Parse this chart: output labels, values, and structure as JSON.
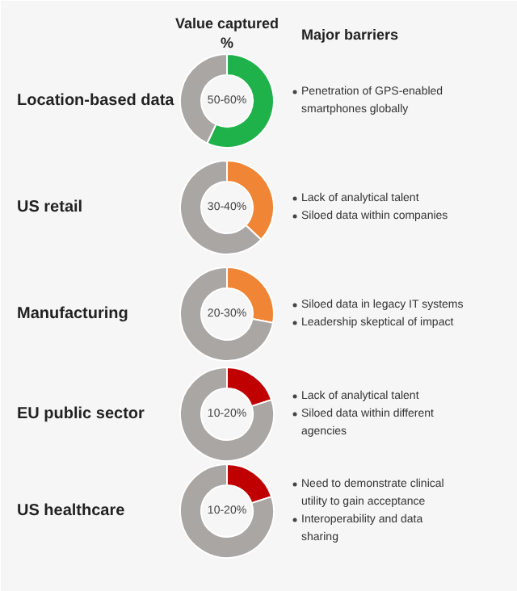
{
  "chart_data": [
    {
      "type": "other",
      "annotations": [
        "Value captured %",
        "Major barriers"
      ]
    },
    {
      "type": "donut",
      "title": "Location-based data",
      "categories": [
        null,
        null
      ],
      "values": [
        57,
        43
      ],
      "colors": [
        "#1fb24a",
        "#aaa6a4"
      ],
      "annotations": [
        "50-60%",
        "Penetration of GPS-enabled smartphones globally"
      ]
    },
    {
      "type": "donut",
      "title": "US retail",
      "categories": [
        null,
        null
      ],
      "values": [
        37,
        63
      ],
      "colors": [
        "#ef8535",
        "#aaa6a4"
      ],
      "annotations": [
        "30-40%",
        "Lack of analytical talent",
        "Siloed data within companies"
      ]
    },
    {
      "type": "donut",
      "title": "Manufacturing",
      "categories": [
        null,
        null
      ],
      "values": [
        28,
        72
      ],
      "colors": [
        "#ef8535",
        "#aaa6a4"
      ],
      "annotations": [
        "20-30%",
        "Siloed data in legacy IT systems",
        "Leadership skeptical of impact"
      ]
    },
    {
      "type": "donut",
      "title": "EU public sector",
      "categories": [
        null,
        null
      ],
      "values": [
        20,
        80
      ],
      "colors": [
        "#c00000",
        "#aaa6a4"
      ],
      "annotations": [
        "10-20%",
        "Lack of analytical talent",
        "Siloed data within different agencies"
      ]
    },
    {
      "type": "donut",
      "title": "US healthcare",
      "categories": [
        null,
        null
      ],
      "values": [
        20,
        80
      ],
      "colors": [
        "#c00000",
        "#aaa6a4"
      ],
      "annotations": [
        "10-20%",
        "Need to demonstrate clinical utility to gain acceptance",
        "Interoperability and data sharing"
      ]
    }
  ]
}
